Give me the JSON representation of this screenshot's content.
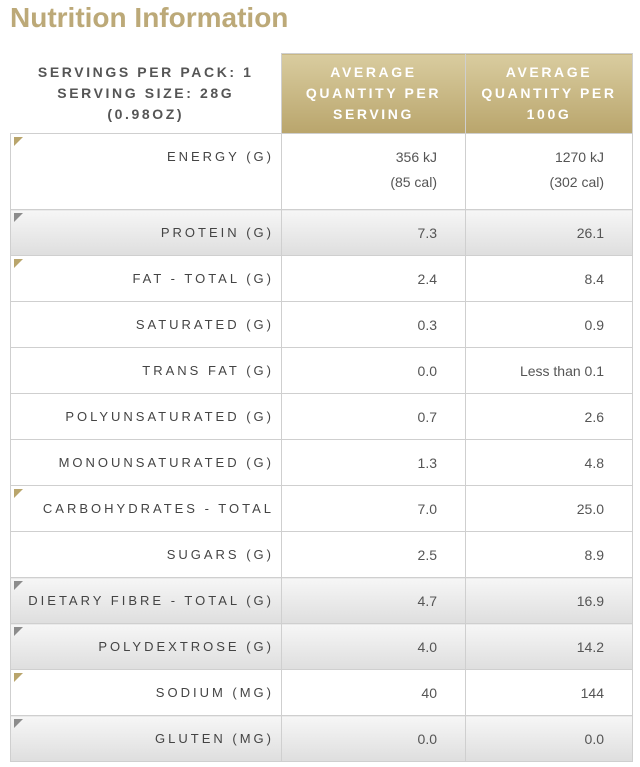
{
  "header": {
    "title": "Nutrition Information"
  },
  "table": {
    "head": [
      [
        "SERVINGS PER PACK: 1",
        "SERVING SIZE: 28G",
        "(0.98OZ)"
      ],
      "AVERAGE QUANTITY PER SERVING",
      "AVERAGE QUANTITY PER 100G"
    ],
    "rows": [
      [
        "ENERGY (G)",
        [
          "356 kJ",
          "(85 cal)"
        ],
        [
          "1270 kJ",
          "(302 cal)"
        ]
      ],
      [
        "PROTEIN (G)",
        "7.3",
        "26.1"
      ],
      [
        "FAT - TOTAL (G)",
        "2.4",
        "8.4"
      ],
      [
        "SATURATED (G)",
        "0.3",
        "0.9"
      ],
      [
        "TRANS FAT (G)",
        "0.0",
        "Less than 0.1"
      ],
      [
        "POLYUNSATURATED (G)",
        "0.7",
        "2.6"
      ],
      [
        "MONOUNSATURATED (G)",
        "1.3",
        "4.8"
      ],
      [
        "CARBOHYDRATES - TOTAL",
        "7.0",
        "25.0"
      ],
      [
        "SUGARS (G)",
        "2.5",
        "8.9"
      ],
      [
        "DIETARY FIBRE - TOTAL (G)",
        "4.7",
        "16.9"
      ],
      [
        "POLYDEXTROSE (G)",
        "4.0",
        "14.2"
      ],
      [
        "SODIUM (MG)",
        "40",
        "144"
      ],
      [
        "GLUTEN (MG)",
        "0.0",
        "0.0"
      ]
    ]
  }
}
